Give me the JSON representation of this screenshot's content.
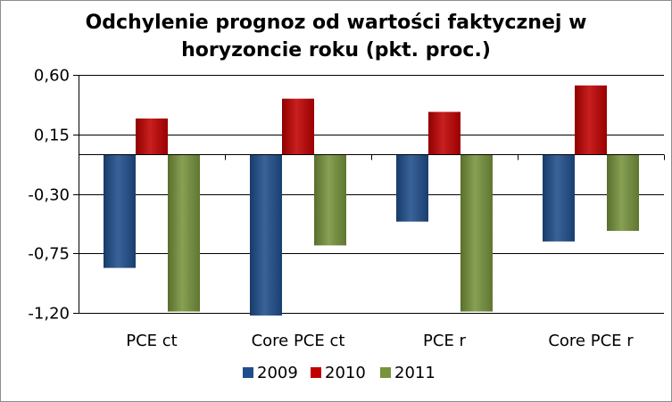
{
  "chart_data": {
    "type": "bar",
    "title_lines": [
      "Odchylenie prognoz od wartości faktycznej w",
      "horyzoncie roku (pkt. proc.)"
    ],
    "categories": [
      "PCE ct",
      "Core PCE ct",
      "PCE r",
      "Core PCE r"
    ],
    "series": [
      {
        "name": "2009",
        "color": "#1f4e8c",
        "values": [
          -0.86,
          -1.22,
          -0.51,
          -0.66
        ]
      },
      {
        "name": "2010",
        "color": "#c00000",
        "values": [
          0.27,
          0.42,
          0.32,
          0.52
        ]
      },
      {
        "name": "2011",
        "color": "#77933c",
        "values": [
          -1.19,
          -0.69,
          -1.19,
          -0.58
        ]
      }
    ],
    "y_ticks": [
      "0,60",
      "0,15",
      "-0,30",
      "-0,75",
      "-1,20"
    ],
    "y_tick_values": [
      0.6,
      0.15,
      -0.3,
      -0.75,
      -1.2
    ],
    "ylim": [
      -1.2,
      0.6
    ],
    "xlabel": "",
    "ylabel": "",
    "grid": true,
    "legend_position": "bottom"
  }
}
